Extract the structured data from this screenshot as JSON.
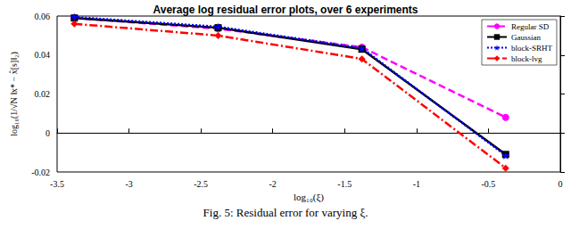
{
  "chart_data": {
    "type": "line",
    "title": "Average log residual error plots, over 6 experiments",
    "x_label": "log₁₀(ξ)",
    "y_label": "log₁₀(1/√N ‖x* − x̂[s]‖₂)",
    "caption": "Fig. 5: Residual error for varying ξ.",
    "x": [
      -3.38,
      -2.38,
      -1.38,
      -0.38
    ],
    "xlim": [
      -3.5,
      0
    ],
    "xticks": [
      -3.5,
      -3,
      -2.5,
      -2,
      -1.5,
      -1,
      -0.5,
      0
    ],
    "ylim": [
      -0.02,
      0.06
    ],
    "yticks": [
      -0.02,
      0,
      0.02,
      0.04,
      0.06
    ],
    "grid": false,
    "legend": "top-right",
    "series": [
      {
        "name": "Regular SD",
        "color": "#ff00ff",
        "marker": "circle",
        "line_style": "dashed",
        "values": [
          0.059,
          0.0535,
          0.044,
          0.008
        ]
      },
      {
        "name": "Gaussian",
        "color": "#000000",
        "marker": "square",
        "line_style": "solid",
        "values": [
          0.059,
          0.054,
          0.043,
          -0.011
        ]
      },
      {
        "name": "block-SRHT",
        "color": "#0000ff",
        "marker": "star",
        "line_style": "dotted",
        "values": [
          0.0595,
          0.0545,
          0.0435,
          -0.0115
        ]
      },
      {
        "name": "block-lvg",
        "color": "#ff0000",
        "marker": "diamond",
        "line_style": "dashdot",
        "values": [
          0.056,
          0.05,
          0.038,
          -0.018
        ]
      }
    ]
  }
}
